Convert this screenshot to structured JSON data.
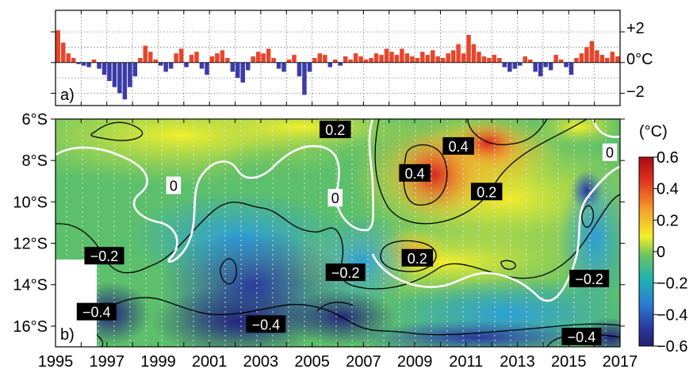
{
  "chart_data": [
    {
      "panel": "a)",
      "type": "bar",
      "ylabel_right": [
        "+2",
        "0°C",
        "−2"
      ],
      "yticks": [
        2,
        0,
        -2
      ],
      "ylim": [
        -2.8,
        3.4
      ],
      "xlim": [
        1995,
        2017
      ],
      "grid": true,
      "colors": {
        "positive": "#e8452c",
        "negative": "#3b3ba8"
      },
      "series": [
        {
          "x": [
            1995.1,
            1995.3,
            1995.5,
            1995.7,
            1995.9,
            1996.1,
            1996.3,
            1996.5,
            1996.7,
            1996.9,
            1997.1,
            1997.3,
            1997.5,
            1997.7,
            1997.9,
            1998.1,
            1998.3,
            1998.5,
            1998.7,
            1998.9,
            1999.1,
            1999.3,
            1999.5,
            1999.7,
            1999.9,
            2000.1,
            2000.3,
            2000.5,
            2000.7,
            2000.9,
            2001.1,
            2001.3,
            2001.5,
            2001.7,
            2001.9,
            2002.1,
            2002.3,
            2002.5,
            2002.7,
            2002.9,
            2003.1,
            2003.3,
            2003.5,
            2003.7,
            2003.9,
            2004.1,
            2004.3,
            2004.5,
            2004.7,
            2004.9,
            2005.1,
            2005.3,
            2005.5,
            2005.7,
            2005.9,
            2006.1,
            2006.3,
            2006.5,
            2006.7,
            2006.9,
            2007.1,
            2007.3,
            2007.5,
            2007.7,
            2007.9,
            2008.1,
            2008.3,
            2008.5,
            2008.7,
            2008.9,
            2009.1,
            2009.3,
            2009.5,
            2009.7,
            2009.9,
            2010.1,
            2010.3,
            2010.5,
            2010.7,
            2010.9,
            2011.1,
            2011.3,
            2011.5,
            2011.7,
            2011.9,
            2012.1,
            2012.3,
            2012.5,
            2012.7,
            2012.9,
            2013.1,
            2013.3,
            2013.5,
            2013.7,
            2013.9,
            2014.1,
            2014.3,
            2014.5,
            2014.7,
            2014.9,
            2015.1,
            2015.3,
            2015.5,
            2015.7,
            2015.9,
            2016.1,
            2016.3,
            2016.5,
            2016.7,
            2016.9
          ],
          "values": [
            2.1,
            1.3,
            0.6,
            0.3,
            -0.1,
            -0.2,
            -0.3,
            0.2,
            -0.4,
            -0.8,
            -1.2,
            -1.6,
            -2.0,
            -2.4,
            -1.6,
            -0.9,
            0.3,
            1.1,
            0.7,
            0.2,
            -0.2,
            -0.6,
            -0.4,
            0.6,
            0.9,
            -0.3,
            0.5,
            0.7,
            -0.4,
            -0.8,
            0.4,
            0.6,
            0.8,
            0.3,
            -0.6,
            -1.0,
            -1.3,
            -0.5,
            0.4,
            0.7,
            0.6,
            0.9,
            0.3,
            -0.4,
            -0.6,
            0.2,
            0.5,
            -0.9,
            -2.1,
            -0.6,
            0.3,
            0.6,
            0.5,
            -0.3,
            0.2,
            -0.2,
            0.4,
            0.2,
            0.6,
            0.4,
            0.2,
            0.3,
            0.6,
            0.5,
            0.9,
            0.7,
            0.5,
            0.9,
            0.6,
            0.4,
            0.3,
            0.7,
            0.5,
            0.8,
            0.4,
            0.3,
            0.6,
            0.8,
            1.2,
            0.6,
            1.8,
            1.2,
            0.7,
            0.4,
            0.3,
            0.5,
            0.3,
            -0.3,
            -0.6,
            -0.4,
            -0.2,
            0.4,
            0.2,
            -0.6,
            -0.9,
            -0.3,
            -0.5,
            0.5,
            0.2,
            -0.3,
            -0.8,
            0.3,
            0.6,
            1.0,
            1.4,
            0.8,
            0.5,
            0.3,
            0.7,
            0.4
          ]
        }
      ]
    },
    {
      "panel": "b)",
      "type": "heatmap",
      "xlim": [
        1995,
        2017
      ],
      "xticks": [
        "1995",
        "1997",
        "1999",
        "2001",
        "2003",
        "2005",
        "2007",
        "2009",
        "2011",
        "2013",
        "2015",
        "2017"
      ],
      "yticks": [
        "6°S",
        "8°S",
        "10°S",
        "12°S",
        "14°S",
        "16°S"
      ],
      "ylim": [
        -6,
        -17
      ],
      "colorbar": {
        "label": "(°C)",
        "range": [
          -0.6,
          0.6
        ],
        "ticks": [
          "0.6",
          "0.4",
          "0.2",
          "0",
          "−0.2",
          "−0.4",
          "−0.6"
        ]
      },
      "contour_levels": [
        -0.4,
        -0.2,
        0,
        0.2,
        0.4
      ],
      "zero_contour_color": "#ffffff",
      "contour_labels": [
        {
          "text": "0.2",
          "x": 2005.9,
          "y": -6.5,
          "style": "dark"
        },
        {
          "text": "0.4",
          "x": 2010.7,
          "y": -7.3,
          "style": "dark"
        },
        {
          "text": "0",
          "x": 2016.6,
          "y": -7.6,
          "style": "light"
        },
        {
          "text": "0.4",
          "x": 2009.0,
          "y": -8.6,
          "style": "dark"
        },
        {
          "text": "0",
          "x": 1999.6,
          "y": -9.2,
          "style": "light"
        },
        {
          "text": "0.2",
          "x": 2011.8,
          "y": -9.5,
          "style": "dark"
        },
        {
          "text": "0",
          "x": 2005.9,
          "y": -9.8,
          "style": "light"
        },
        {
          "text": "−0.2",
          "x": 1996.9,
          "y": -12.6,
          "style": "dark"
        },
        {
          "text": "0.2",
          "x": 2009.1,
          "y": -12.7,
          "style": "dark"
        },
        {
          "text": "−0.2",
          "x": 2006.3,
          "y": -13.4,
          "style": "dark"
        },
        {
          "text": "−0.2",
          "x": 2015.8,
          "y": -13.7,
          "style": "dark"
        },
        {
          "text": "−0.4",
          "x": 1996.6,
          "y": -15.3,
          "style": "dark"
        },
        {
          "text": "−0.4",
          "x": 2003.2,
          "y": -15.9,
          "style": "dark"
        },
        {
          "text": "−0.4",
          "x": 2015.5,
          "y": -16.5,
          "style": "dark"
        }
      ]
    }
  ],
  "labels": {
    "panel_a": "a)",
    "panel_b": "b)",
    "colorbar_unit": "(°C)"
  }
}
